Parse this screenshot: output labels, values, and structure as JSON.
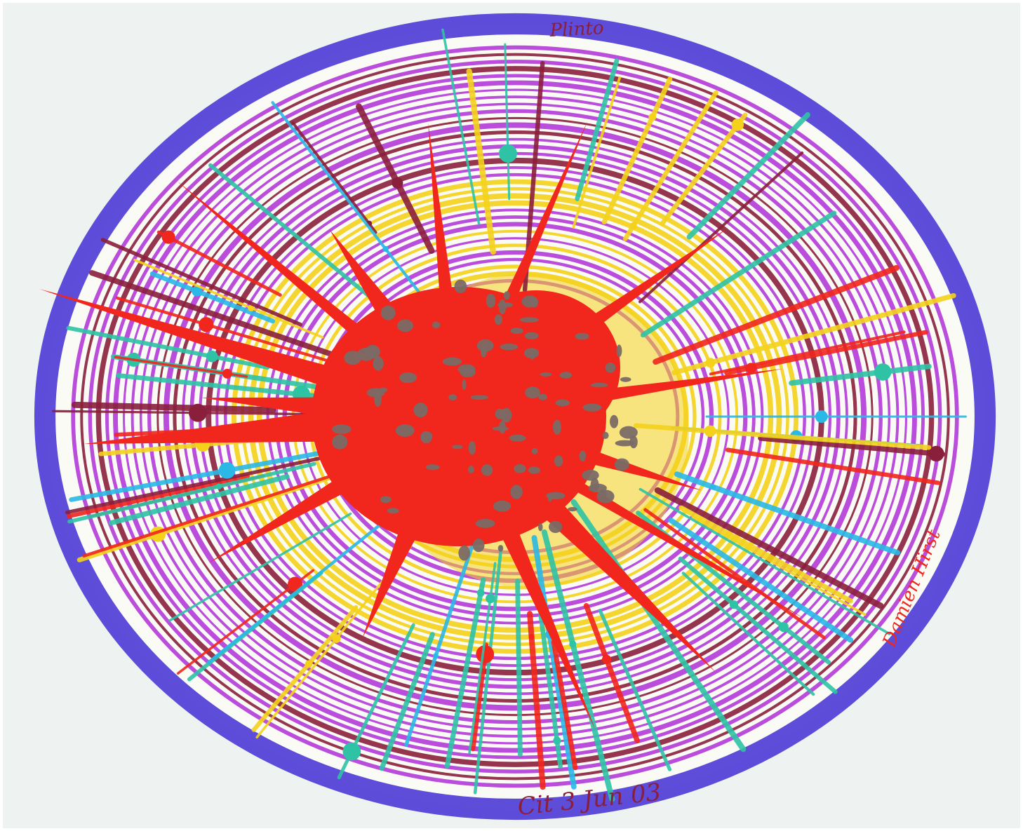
{
  "artwork": {
    "kind": "spin painting",
    "colors": {
      "paper": "#eef3f1",
      "outer_ring": "#4b3ad6",
      "magenta": "#b23ad8",
      "yellow": "#f4d21c",
      "red": "#f1261c",
      "grey": "#7a6a66",
      "teal": "#2fc3a6",
      "cyan": "#2ab9e6",
      "maroon": "#8a1f3c"
    },
    "inscriptions": {
      "top": "Plinto",
      "bottom": "Cit 3 Jun 03",
      "right": "Damien Hirst"
    }
  }
}
